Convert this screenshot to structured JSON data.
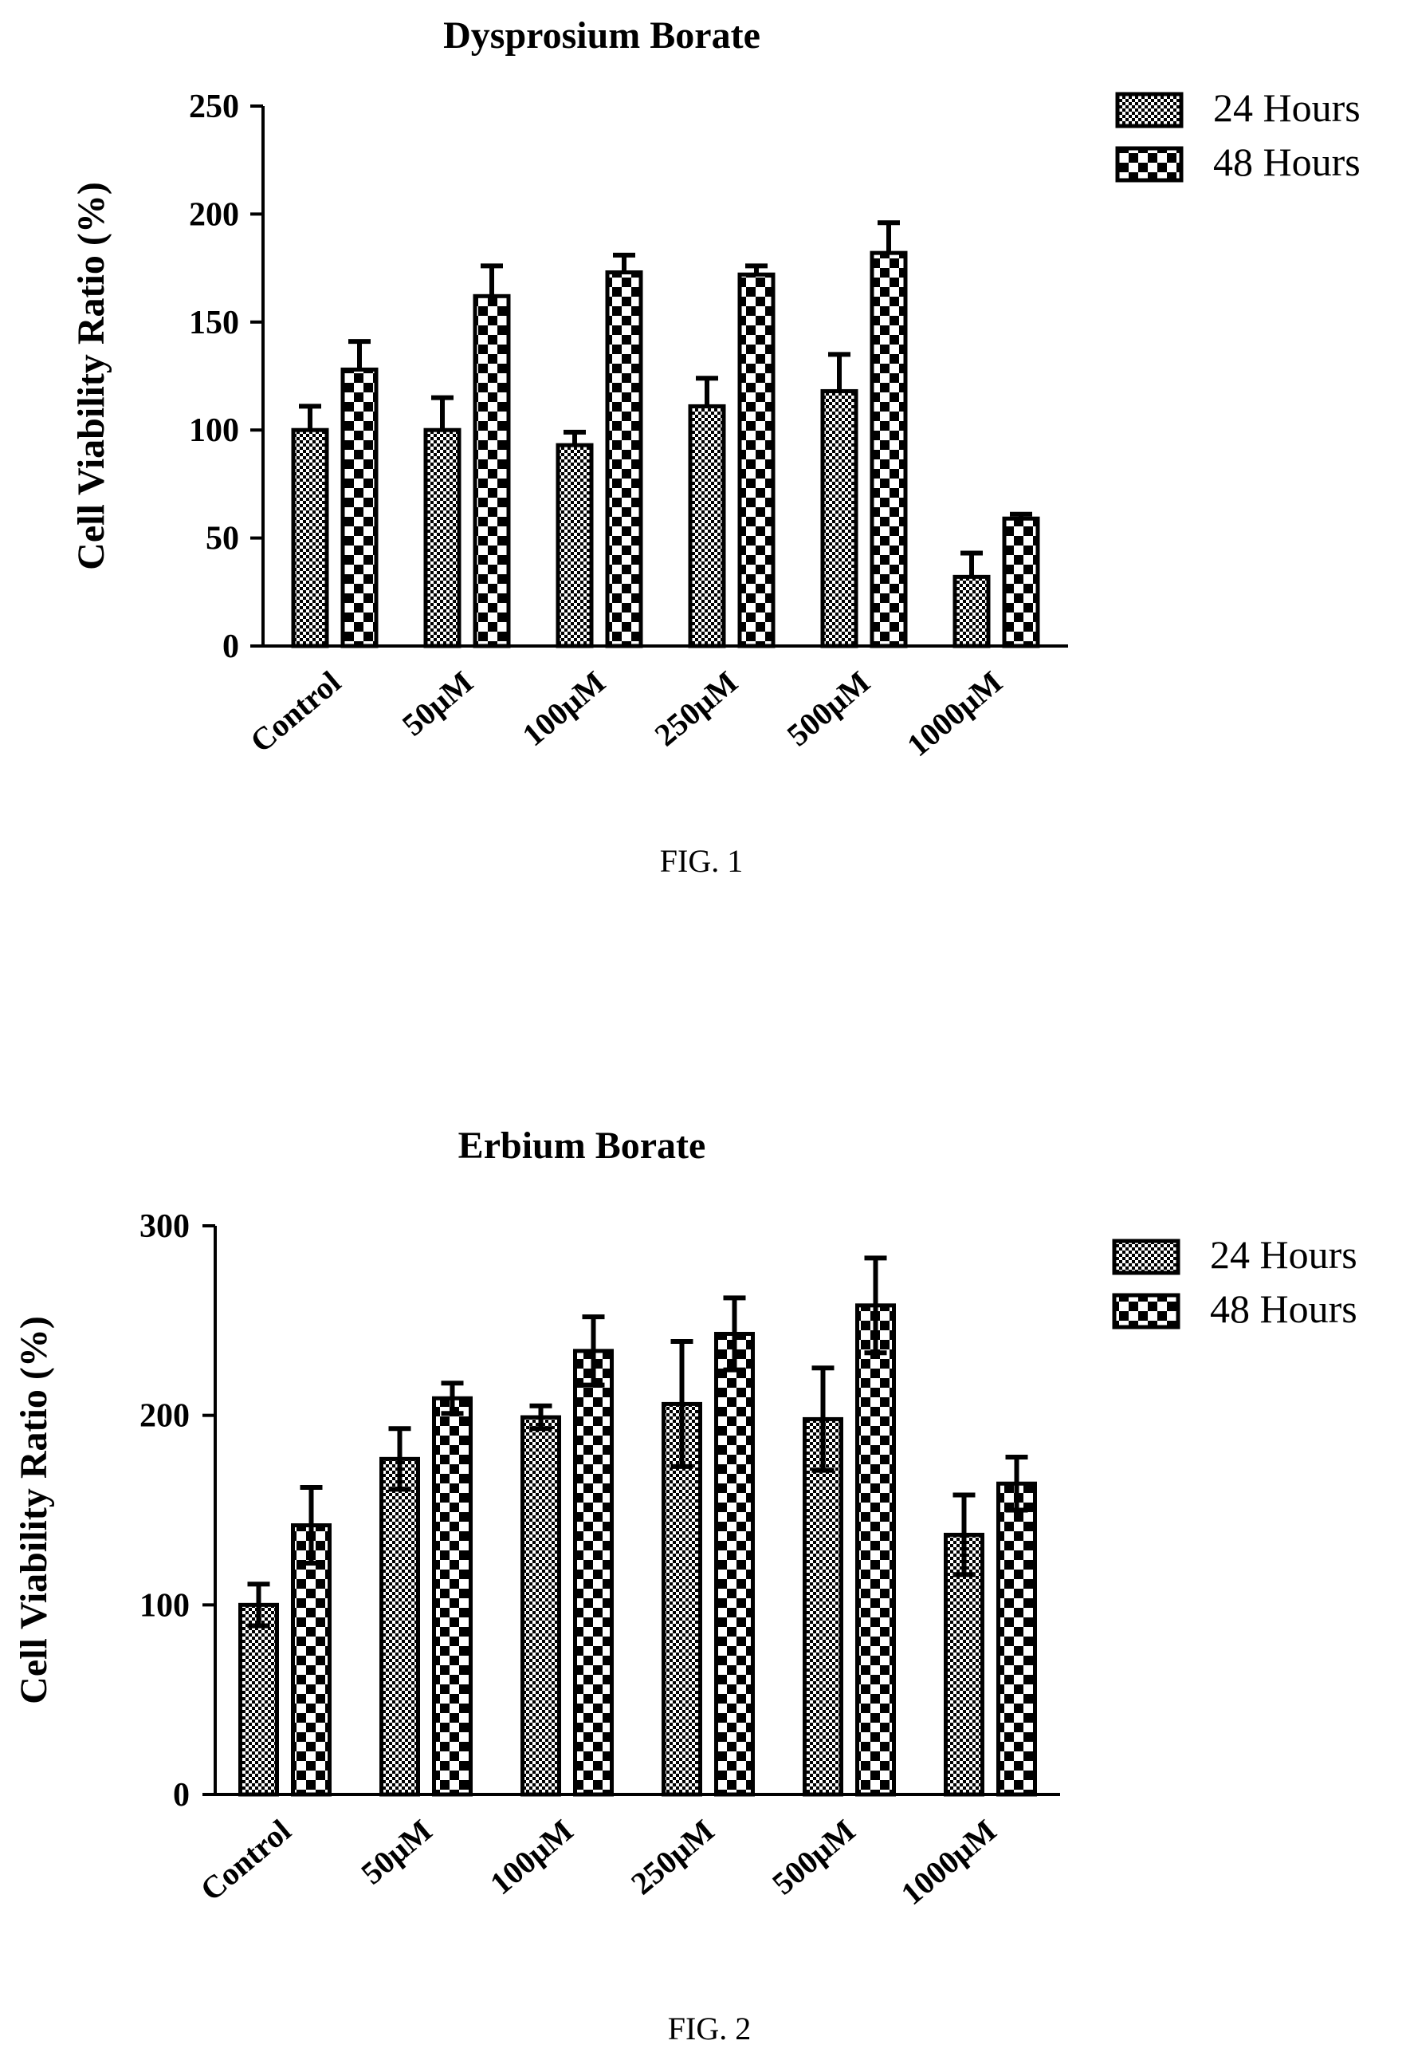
{
  "colors": {
    "ink": "#000000",
    "paper": "#ffffff"
  },
  "chart_data": [
    {
      "type": "bar",
      "title": "Dysprosium Borate",
      "ylabel": "Cell Viability Ratio (%)",
      "xlabel": "",
      "ylim": [
        0,
        250
      ],
      "yticks": [
        0,
        50,
        100,
        150,
        200,
        250
      ],
      "categories": [
        "Control",
        "50μM",
        "100μM",
        "250μM",
        "500μM",
        "1000μM"
      ],
      "series": [
        {
          "name": "24 Hours",
          "pattern": "fine",
          "values": [
            100,
            100,
            93,
            111,
            118,
            32
          ],
          "errors": [
            11,
            15,
            6,
            13,
            17,
            11
          ]
        },
        {
          "name": "48 Hours",
          "pattern": "checker",
          "values": [
            128,
            162,
            173,
            172,
            182,
            59
          ],
          "errors": [
            13,
            14,
            8,
            4,
            14,
            2
          ]
        }
      ],
      "legend_position": "top-right",
      "caption": "FIG. 1"
    },
    {
      "type": "bar",
      "title": "Erbium Borate",
      "ylabel": "Cell Viability Ratio (%)",
      "xlabel": "",
      "ylim": [
        0,
        300
      ],
      "yticks": [
        0,
        100,
        200,
        300
      ],
      "categories": [
        "Control",
        "50μM",
        "100μM",
        "250μM",
        "500μM",
        "1000μM"
      ],
      "series": [
        {
          "name": "24 Hours",
          "pattern": "fine",
          "values": [
            100,
            177,
            199,
            206,
            198,
            137
          ],
          "errors": [
            11,
            16,
            6,
            33,
            27,
            21
          ]
        },
        {
          "name": "48 Hours",
          "pattern": "checker",
          "values": [
            142,
            209,
            234,
            243,
            258,
            164
          ],
          "errors": [
            20,
            8,
            18,
            19,
            25,
            14
          ]
        }
      ],
      "legend_position": "top-right",
      "caption": "FIG. 2"
    }
  ]
}
